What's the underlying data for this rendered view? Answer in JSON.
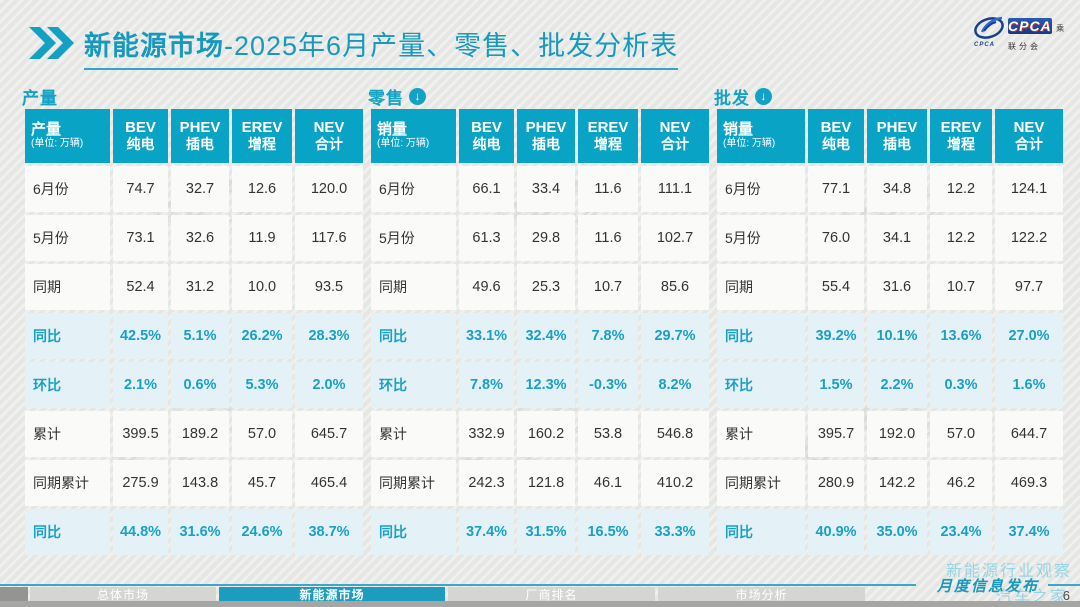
{
  "page": {
    "title_bold": "新能源市场",
    "title_rest": "-2025年6月产量、零售、批发分析表",
    "page_number": "6"
  },
  "logo": {
    "box_text": "CPCA",
    "box_sub": "乘联分会",
    "emblem_sub": "CPCA"
  },
  "colors": {
    "accent_teal": "#13a2c4",
    "header_bg": "#09a3c5",
    "highlight_bg": "#e4f2f8",
    "highlight_text": "#19a0c4",
    "title_teal": "#1699bd",
    "active_tab": "#1d9cbd"
  },
  "watermark": {
    "logo_big": "CPCA",
    "logo_small": "乘联分会",
    "corner_line1": "新能源行业观察",
    "corner_line2": "汽车之家"
  },
  "chart_data": [
    {
      "type": "table",
      "title": "产量",
      "has_arrow": false,
      "corner": {
        "label": "产量",
        "unit": "(单位: 万辆)"
      },
      "columns": [
        {
          "en": "BEV",
          "zh": "纯电"
        },
        {
          "en": "PHEV",
          "zh": "插电"
        },
        {
          "en": "EREV",
          "zh": "增程"
        },
        {
          "en": "NEV",
          "zh": "合计"
        }
      ],
      "rows": [
        {
          "label": "6月份",
          "values": [
            "74.7",
            "32.7",
            "12.6",
            "120.0"
          ],
          "highlight": false
        },
        {
          "label": "5月份",
          "values": [
            "73.1",
            "32.6",
            "11.9",
            "117.6"
          ],
          "highlight": false
        },
        {
          "label": "同期",
          "values": [
            "52.4",
            "31.2",
            "10.0",
            "93.5"
          ],
          "highlight": false
        },
        {
          "label": "同比",
          "values": [
            "42.5%",
            "5.1%",
            "26.2%",
            "28.3%"
          ],
          "highlight": true
        },
        {
          "label": "环比",
          "values": [
            "2.1%",
            "0.6%",
            "5.3%",
            "2.0%"
          ],
          "highlight": true
        },
        {
          "label": "累计",
          "values": [
            "399.5",
            "189.2",
            "57.0",
            "645.7"
          ],
          "highlight": false
        },
        {
          "label": "同期累计",
          "values": [
            "275.9",
            "143.8",
            "45.7",
            "465.4"
          ],
          "highlight": false
        },
        {
          "label": "同比",
          "values": [
            "44.8%",
            "31.6%",
            "24.6%",
            "38.7%"
          ],
          "highlight": true
        }
      ]
    },
    {
      "type": "table",
      "title": "零售",
      "has_arrow": true,
      "corner": {
        "label": "销量",
        "unit": "(单位: 万辆)"
      },
      "columns": [
        {
          "en": "BEV",
          "zh": "纯电"
        },
        {
          "en": "PHEV",
          "zh": "插电"
        },
        {
          "en": "EREV",
          "zh": "增程"
        },
        {
          "en": "NEV",
          "zh": "合计"
        }
      ],
      "rows": [
        {
          "label": "6月份",
          "values": [
            "66.1",
            "33.4",
            "11.6",
            "111.1"
          ],
          "highlight": false
        },
        {
          "label": "5月份",
          "values": [
            "61.3",
            "29.8",
            "11.6",
            "102.7"
          ],
          "highlight": false
        },
        {
          "label": "同期",
          "values": [
            "49.6",
            "25.3",
            "10.7",
            "85.6"
          ],
          "highlight": false
        },
        {
          "label": "同比",
          "values": [
            "33.1%",
            "32.4%",
            "7.8%",
            "29.7%"
          ],
          "highlight": true
        },
        {
          "label": "环比",
          "values": [
            "7.8%",
            "12.3%",
            "-0.3%",
            "8.2%"
          ],
          "highlight": true
        },
        {
          "label": "累计",
          "values": [
            "332.9",
            "160.2",
            "53.8",
            "546.8"
          ],
          "highlight": false
        },
        {
          "label": "同期累计",
          "values": [
            "242.3",
            "121.8",
            "46.1",
            "410.2"
          ],
          "highlight": false
        },
        {
          "label": "同比",
          "values": [
            "37.4%",
            "31.5%",
            "16.5%",
            "33.3%"
          ],
          "highlight": true
        }
      ]
    },
    {
      "type": "table",
      "title": "批发",
      "has_arrow": true,
      "corner": {
        "label": "销量",
        "unit": "(单位: 万辆)"
      },
      "columns": [
        {
          "en": "BEV",
          "zh": "纯电"
        },
        {
          "en": "PHEV",
          "zh": "插电"
        },
        {
          "en": "EREV",
          "zh": "增程"
        },
        {
          "en": "NEV",
          "zh": "合计"
        }
      ],
      "rows": [
        {
          "label": "6月份",
          "values": [
            "77.1",
            "34.8",
            "12.2",
            "124.1"
          ],
          "highlight": false
        },
        {
          "label": "5月份",
          "values": [
            "76.0",
            "34.1",
            "12.2",
            "122.2"
          ],
          "highlight": false
        },
        {
          "label": "同期",
          "values": [
            "55.4",
            "31.6",
            "10.7",
            "97.7"
          ],
          "highlight": false
        },
        {
          "label": "同比",
          "values": [
            "39.2%",
            "10.1%",
            "13.6%",
            "27.0%"
          ],
          "highlight": true
        },
        {
          "label": "环比",
          "values": [
            "1.5%",
            "2.2%",
            "0.3%",
            "1.6%"
          ],
          "highlight": true
        },
        {
          "label": "累计",
          "values": [
            "395.7",
            "192.0",
            "57.0",
            "644.7"
          ],
          "highlight": false
        },
        {
          "label": "同期累计",
          "values": [
            "280.9",
            "142.2",
            "46.2",
            "469.3"
          ],
          "highlight": false
        },
        {
          "label": "同比",
          "values": [
            "40.9%",
            "35.0%",
            "23.4%",
            "37.4%"
          ],
          "highlight": true
        }
      ]
    }
  ],
  "footer": {
    "stamp": "月度信息发布",
    "tabs": [
      {
        "label": "总体市场",
        "active": false
      },
      {
        "label": "新能源市场",
        "active": true
      },
      {
        "label": "厂商排名",
        "active": false
      },
      {
        "label": "市场分析",
        "active": false
      }
    ]
  }
}
